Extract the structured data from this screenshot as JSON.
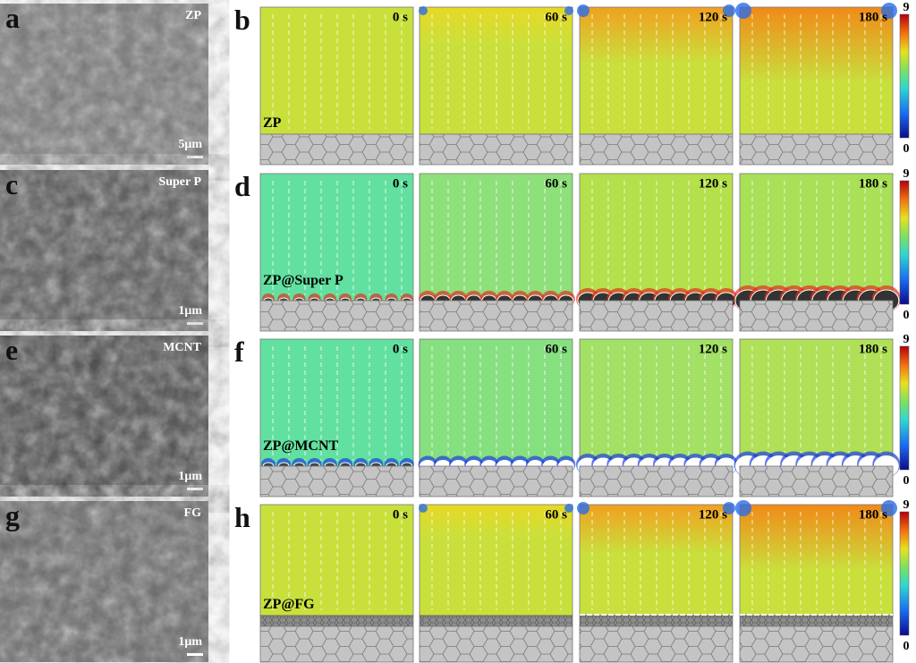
{
  "rows": [
    {
      "sem_letter": "a",
      "sem_label": "ZP",
      "scale_bar": "5μm",
      "sim_letter": "b",
      "material": "ZP",
      "times": [
        "0 s",
        "60 s",
        "120 s",
        "180 s"
      ],
      "colorbar_max": 9,
      "colorbar_min": 0
    },
    {
      "sem_letter": "c",
      "sem_label": "Super P",
      "scale_bar": "1μm",
      "sim_letter": "d",
      "material": "ZP@Super P",
      "times": [
        "0 s",
        "60 s",
        "120 s",
        "180 s"
      ],
      "colorbar_max": 9,
      "colorbar_min": 0
    },
    {
      "sem_letter": "e",
      "sem_label": "MCNT",
      "scale_bar": "1μm",
      "sim_letter": "f",
      "material": "ZP@MCNT",
      "times": [
        "0 s",
        "60 s",
        "120 s",
        "180 s"
      ],
      "colorbar_max": 9,
      "colorbar_min": 0
    },
    {
      "sem_letter": "g",
      "sem_label": "FG",
      "scale_bar": "1μm",
      "sim_letter": "h",
      "material": "ZP@FG",
      "times": [
        "0 s",
        "60 s",
        "120 s",
        "180 s"
      ],
      "colorbar_max": 9,
      "colorbar_min": 0
    }
  ]
}
